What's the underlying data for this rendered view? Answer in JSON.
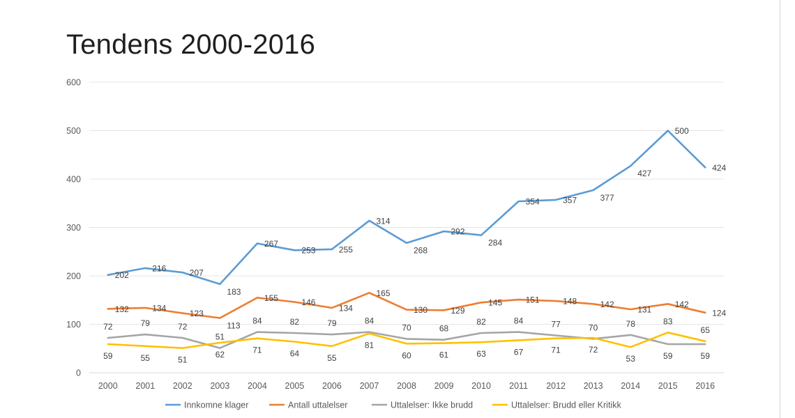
{
  "title": "Tendens 2000-2016",
  "chart_data": {
    "type": "line",
    "title": "Tendens 2000-2016",
    "xlabel": "",
    "ylabel": "",
    "ylim": [
      0,
      600
    ],
    "yticks": [
      0,
      100,
      200,
      300,
      400,
      500,
      600
    ],
    "grid": true,
    "legend_position": "bottom",
    "categories": [
      "2000",
      "2001",
      "2002",
      "2003",
      "2004",
      "2005",
      "2006",
      "2007",
      "2008",
      "2009",
      "2010",
      "2011",
      "2012",
      "2013",
      "2014",
      "2015",
      "2016"
    ],
    "series": [
      {
        "name": "Innkomne klager",
        "color": "#5b9bd5",
        "values": [
          202,
          216,
          207,
          183,
          267,
          253,
          255,
          314,
          268,
          292,
          284,
          354,
          357,
          377,
          427,
          500,
          424
        ],
        "label_pos": [
          "r",
          "r",
          "r",
          "br",
          "r",
          "r",
          "r",
          "r",
          "br",
          "r",
          "br",
          "r",
          "r",
          "br",
          "br",
          "r",
          "r"
        ]
      },
      {
        "name": "Antall uttalelser",
        "color": "#ed7d31",
        "values": [
          132,
          134,
          123,
          113,
          155,
          146,
          134,
          165,
          130,
          129,
          145,
          151,
          148,
          142,
          131,
          142,
          124
        ],
        "label_pos": [
          "r",
          "r",
          "r",
          "br",
          "r",
          "r",
          "r",
          "r",
          "r",
          "r",
          "r",
          "r",
          "r",
          "r",
          "r",
          "r",
          "r"
        ]
      },
      {
        "name": "Uttalelser: Ikke brudd",
        "color": "#a5a5a5",
        "values": [
          72,
          79,
          72,
          51,
          84,
          82,
          79,
          84,
          70,
          68,
          82,
          84,
          77,
          70,
          78,
          59,
          59
        ],
        "label_pos": [
          "t",
          "t",
          "t",
          "t",
          "t",
          "t",
          "t",
          "t",
          "t",
          "t",
          "t",
          "t",
          "t",
          "t",
          "t",
          "b",
          "b"
        ]
      },
      {
        "name": "Uttalelser: Brudd eller Kritikk",
        "color": "#ffc000",
        "values": [
          59,
          55,
          51,
          62,
          71,
          64,
          55,
          81,
          60,
          61,
          63,
          67,
          71,
          72,
          53,
          83,
          65
        ],
        "label_pos": [
          "b",
          "b",
          "b",
          "b",
          "b",
          "b",
          "b",
          "b",
          "b",
          "b",
          "b",
          "b",
          "b",
          "b",
          "b",
          "t",
          "t"
        ]
      }
    ]
  }
}
